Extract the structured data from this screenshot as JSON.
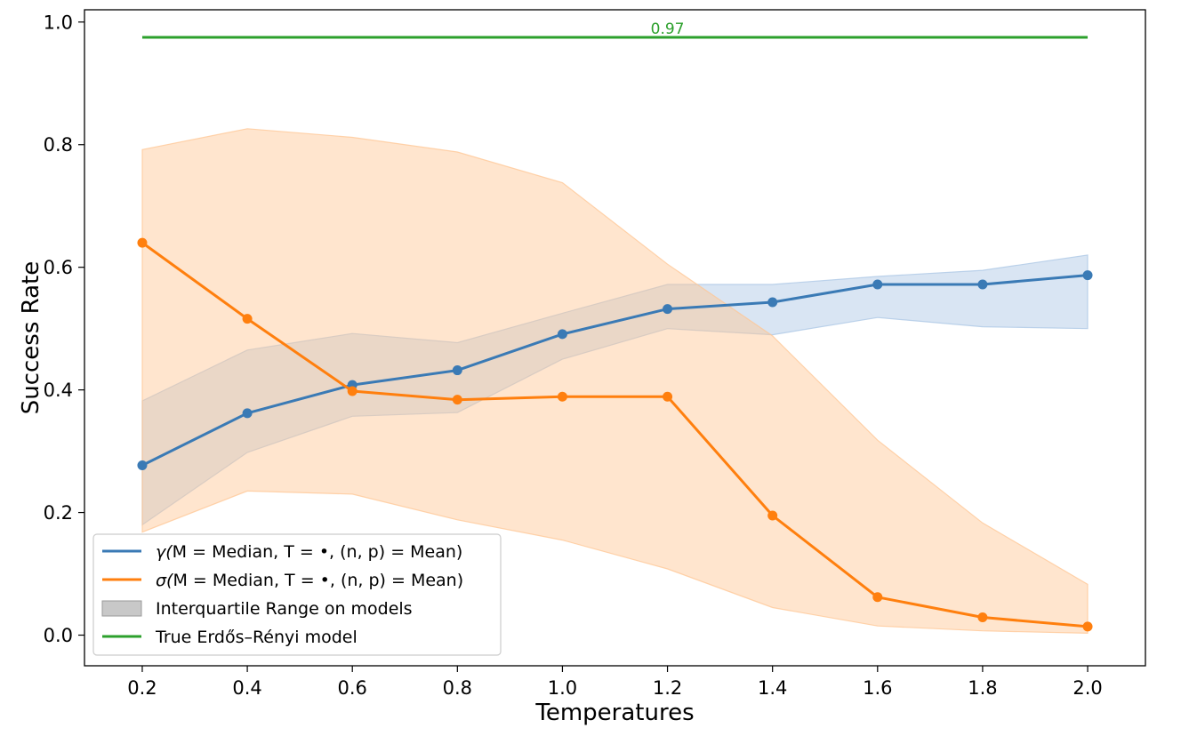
{
  "chart_data": {
    "type": "line",
    "title": "",
    "xlabel": "Temperatures",
    "ylabel": "Success Rate",
    "xlim": [
      0.09,
      2.11
    ],
    "ylim": [
      -0.05,
      1.02
    ],
    "x": [
      0.2,
      0.4,
      0.6,
      0.8,
      1.0,
      1.2,
      1.4,
      1.6,
      1.8,
      2.0
    ],
    "xtick_labels": [
      "0.2",
      "0.4",
      "0.6",
      "0.8",
      "1.0",
      "1.2",
      "1.4",
      "1.6",
      "1.8",
      "2.0"
    ],
    "yticks": [
      0.0,
      0.2,
      0.4,
      0.6,
      0.8,
      1.0
    ],
    "ytick_labels": [
      "0.0",
      "0.2",
      "0.4",
      "0.6",
      "0.8",
      "1.0"
    ],
    "grid": false,
    "legend_position": "bottom-left",
    "series": [
      {
        "name": "γ(M = Median, T = •, (n,p) = Mean)",
        "color": "#3a7ab5",
        "band_color": "#aac6e4",
        "values": [
          0.277,
          0.362,
          0.408,
          0.432,
          0.491,
          0.532,
          0.543,
          0.572,
          0.572,
          0.587
        ],
        "iqr_low": [
          0.18,
          0.298,
          0.357,
          0.363,
          0.45,
          0.5,
          0.49,
          0.518,
          0.503,
          0.5
        ],
        "iqr_high": [
          0.382,
          0.465,
          0.492,
          0.477,
          0.525,
          0.572,
          0.572,
          0.585,
          0.595,
          0.62
        ]
      },
      {
        "name": "σ(M = Median, T = •, (n,p) = Mean)",
        "color": "#ff7f0e",
        "band_color": "#ffc593",
        "values": [
          0.64,
          0.516,
          0.398,
          0.384,
          0.389,
          0.389,
          0.195,
          0.062,
          0.029,
          0.014
        ],
        "iqr_low": [
          0.168,
          0.235,
          0.23,
          0.188,
          0.155,
          0.108,
          0.045,
          0.015,
          0.007,
          0.003
        ],
        "iqr_high": [
          0.792,
          0.826,
          0.812,
          0.788,
          0.738,
          0.605,
          0.488,
          0.318,
          0.183,
          0.083
        ]
      }
    ],
    "reference_line": {
      "name": "True Erdős–Rényi model",
      "color": "#2ca02c",
      "y": 0.975,
      "x_start": 0.2,
      "x_end": 2.0,
      "annotation": "0.97",
      "annotation_x": 1.2
    },
    "legend": [
      {
        "kind": "line",
        "color": "#3a7ab5",
        "prefix": "γ(",
        "expr": "M = Median, T = •, (n, p) = Mean",
        "suffix": ")"
      },
      {
        "kind": "line",
        "color": "#ff7f0e",
        "prefix": "σ(",
        "expr": "M = Median, T = •, (n, p) = Mean",
        "suffix": ")"
      },
      {
        "kind": "patch",
        "color": "#c8c8c8",
        "label": "Interquartile Range on models"
      },
      {
        "kind": "line",
        "color": "#2ca02c",
        "label": "True Erdős–Rényi model"
      }
    ]
  }
}
